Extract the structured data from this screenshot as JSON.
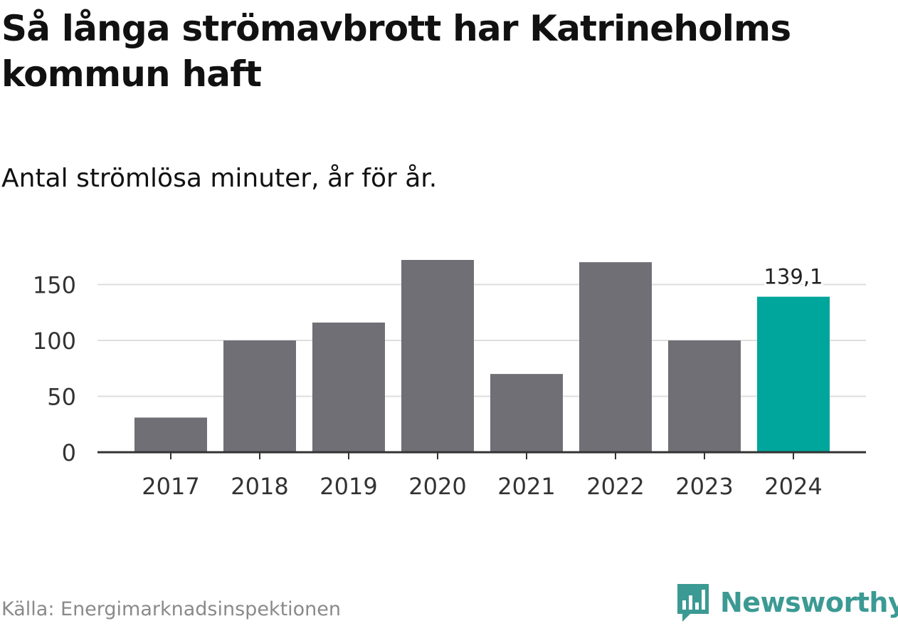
{
  "header": {
    "title": "Så långa strömavbrott har Katrineholms kommun haft",
    "subtitle": "Antal strömlösa minuter, år för år."
  },
  "chart_data": {
    "type": "bar",
    "categories": [
      "2017",
      "2018",
      "2019",
      "2020",
      "2021",
      "2022",
      "2023",
      "2024"
    ],
    "values": [
      31,
      100,
      116,
      172,
      70,
      170,
      100,
      139.1
    ],
    "highlight_index": 7,
    "highlight_label": "139,1",
    "yticks": [
      "0",
      "50",
      "100",
      "150"
    ],
    "ylim": [
      0,
      172
    ],
    "grid": true,
    "colors": {
      "bar": "#706f75",
      "highlight": "#00a59b",
      "grid": "#dedede",
      "axis": "#333333"
    }
  },
  "footer": {
    "source": "Källa: Energimarknadsinspektionen",
    "brand": "Newsworthy",
    "brand_icon": "newsworthy-logo-icon",
    "brand_color": "#3b9a93"
  }
}
